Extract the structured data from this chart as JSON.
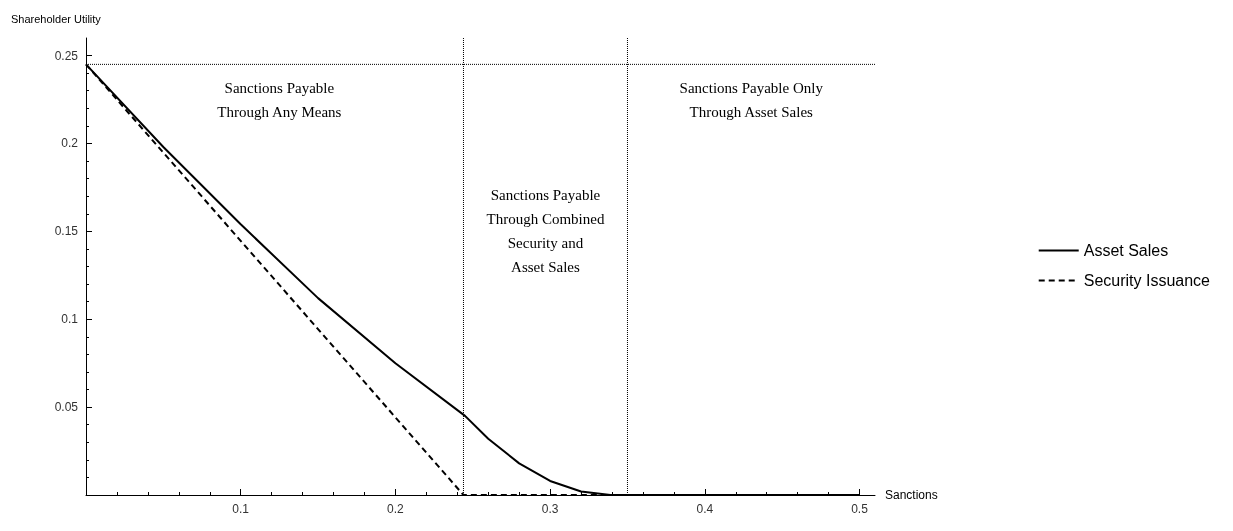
{
  "chart_data": {
    "type": "line",
    "xlabel": "Sanctions",
    "ylabel": "Shareholder Utility",
    "series": [
      {
        "name": "Asset Sales",
        "color": "#000000",
        "line_style": "solid",
        "x": [
          0,
          0.05,
          0.1,
          0.15,
          0.2,
          0.245,
          0.26,
          0.28,
          0.3,
          0.32,
          0.339,
          0.4,
          0.5
        ],
        "values": [
          0.245,
          0.198,
          0.154,
          0.112,
          0.075,
          0.045,
          0.032,
          0.018,
          0.008,
          0.002,
          0,
          0,
          0
        ]
      },
      {
        "name": "Security Issuance",
        "color": "#000000",
        "line_style": "dashed",
        "x": [
          0,
          0.244,
          0.3,
          0.4,
          0.5
        ],
        "values": [
          0.245,
          0,
          0,
          0,
          0
        ]
      }
    ],
    "xlim": [
      0,
      0.51
    ],
    "xticks": [
      0.1,
      0.2,
      0.3,
      0.4,
      0.5
    ],
    "ylim": [
      0,
      0.26
    ],
    "yticks": [
      0.05,
      0.1,
      0.15,
      0.2,
      0.25
    ],
    "ref_lines": [
      {
        "axis": "x",
        "value": 0.244,
        "line_style": "dotted"
      },
      {
        "axis": "x",
        "value": 0.35,
        "line_style": "dotted"
      },
      {
        "axis": "y",
        "value": 0.245,
        "line_style": "dotted"
      }
    ],
    "annotations": [
      "Sanctions Payable\nThrough Any Means",
      "Sanctions Payable\nThrough Combined\nSecurity and\nAsset Sales",
      "Sanctions Payable Only\nThrough Asset Sales"
    ],
    "grid": false,
    "legend": "right",
    "marker": "none"
  }
}
